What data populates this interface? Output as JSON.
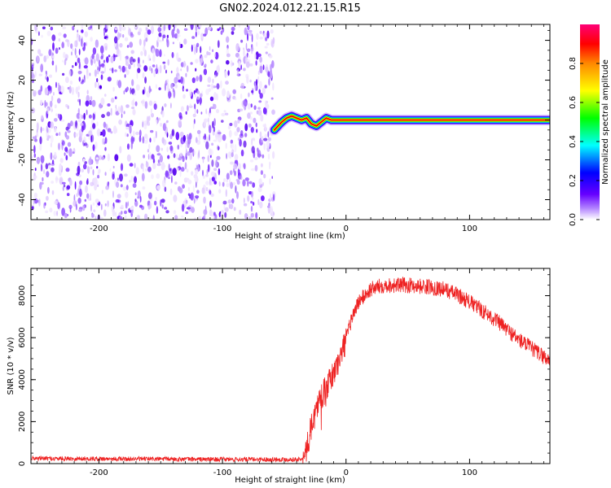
{
  "title": "GN02.2024.012.21.15.R15",
  "colors": {
    "snr_line": "#ee2222",
    "frame": "#000000"
  },
  "chart_data": [
    {
      "type": "heatmap",
      "xlabel": "Height of straight line (km)",
      "ylabel": "Frequency (Hz)",
      "xlim": [
        -255,
        165
      ],
      "ylim": [
        -50,
        48
      ],
      "x_ticks": [
        -200,
        -100,
        0,
        100
      ],
      "x_tick_labels": [
        "-200",
        "-100",
        "0",
        "100"
      ],
      "y_ticks": [
        -40,
        -20,
        0,
        20,
        40
      ],
      "y_tick_labels": [
        "-40",
        "-20",
        "0",
        "20",
        "40"
      ],
      "colorbar": {
        "label": "Normalized spectral amplitude",
        "range": [
          0,
          1
        ],
        "ticks": [
          0.0,
          0.2,
          0.4,
          0.6,
          0.8
        ],
        "tick_labels": [
          "0.0",
          "0.2",
          "0.4",
          "0.6",
          "0.8"
        ],
        "colormap": [
          "#ffffff",
          "#6600ff",
          "#0000ff",
          "#00ffff",
          "#00ff00",
          "#ffff00",
          "#ff8800",
          "#ff0000",
          "#ff0077"
        ]
      },
      "regions": {
        "noise": {
          "x": [
            -255,
            -58
          ],
          "freq": [
            -50,
            48
          ],
          "amplitude": [
            0,
            0.25
          ]
        },
        "signal": {
          "x": [
            -58,
            165
          ],
          "freq_track": [
            [
              -58,
              -5
            ],
            [
              -55,
              -3
            ],
            [
              -52,
              -1
            ],
            [
              -48,
              1
            ],
            [
              -44,
              2
            ],
            [
              -40,
              1
            ],
            [
              -36,
              0
            ],
            [
              -32,
              1
            ],
            [
              -28,
              -2
            ],
            [
              -24,
              -3
            ],
            [
              -20,
              -1
            ],
            [
              -16,
              1
            ],
            [
              -12,
              0
            ],
            [
              0,
              0
            ],
            [
              165,
              0
            ]
          ],
          "amplitude": 1.0
        }
      },
      "grid": false
    },
    {
      "type": "line",
      "xlabel": "Height of straight line (km)",
      "ylabel": "SNR (10 * v/v)",
      "xlim": [
        -255,
        165
      ],
      "ylim": [
        0,
        9300
      ],
      "x_ticks": [
        -200,
        -100,
        0,
        100
      ],
      "x_tick_labels": [
        "-200",
        "-100",
        "0",
        "100"
      ],
      "y_ticks": [
        0,
        2000,
        4000,
        6000,
        8000
      ],
      "y_tick_labels": [
        "0",
        "2000",
        "4000",
        "6000",
        "8000"
      ],
      "grid": false,
      "series": [
        {
          "x": [
            -255,
            -200,
            -150,
            -100,
            -60,
            -35,
            -33,
            -28,
            -22,
            -15,
            -10,
            -5,
            0,
            5,
            10,
            20,
            30,
            40,
            50,
            60,
            70,
            80,
            90,
            100,
            110,
            120,
            130,
            140,
            150,
            160,
            165
          ],
          "y": [
            250,
            230,
            220,
            200,
            200,
            200,
            350,
            1800,
            3000,
            3700,
            4300,
            5000,
            5900,
            7000,
            7700,
            8300,
            8500,
            8500,
            8500,
            8450,
            8400,
            8300,
            8050,
            7700,
            7300,
            6900,
            6400,
            5900,
            5500,
            5100,
            4900
          ]
        }
      ]
    }
  ]
}
